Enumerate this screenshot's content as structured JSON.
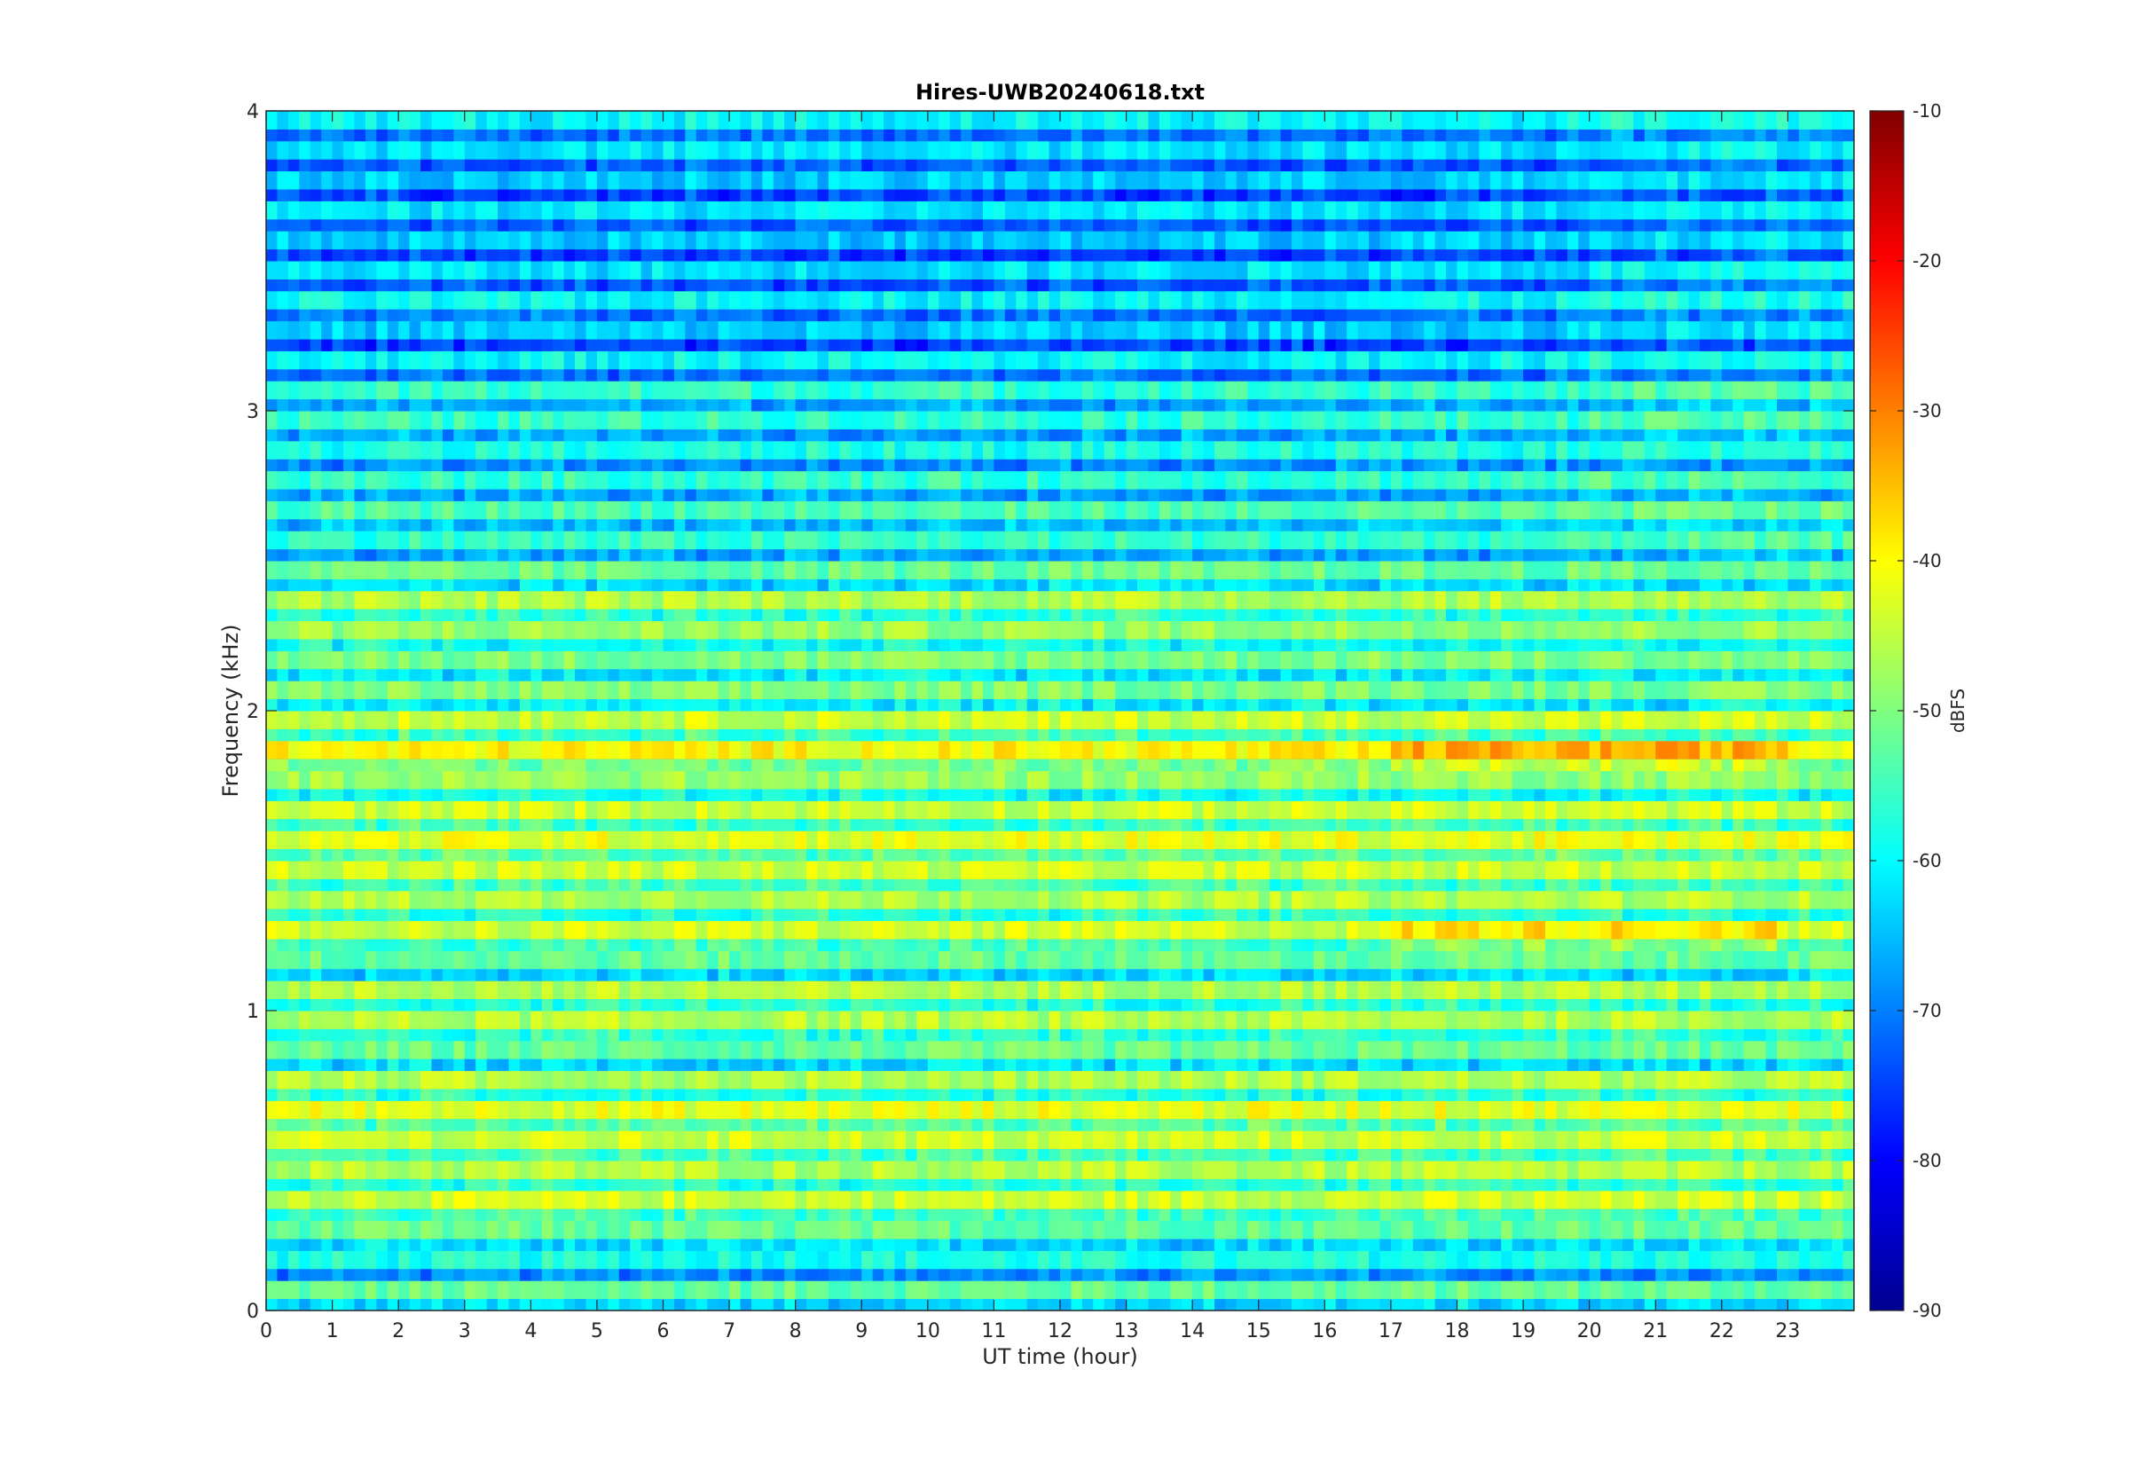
{
  "chart_data": {
    "type": "heatmap",
    "title": "Hires-UWB20240618.txt",
    "xlabel": "UT time (hour)",
    "ylabel": "Frequency (kHz)",
    "colorbar_label": "dBFS",
    "xlim": [
      0,
      24
    ],
    "ylim": [
      0,
      4
    ],
    "clim": [
      -90,
      -10
    ],
    "colormap": "jet",
    "x_ticks": [
      "0",
      "1",
      "2",
      "3",
      "4",
      "5",
      "6",
      "7",
      "8",
      "9",
      "10",
      "11",
      "12",
      "13",
      "14",
      "15",
      "16",
      "17",
      "18",
      "19",
      "20",
      "21",
      "22",
      "23"
    ],
    "y_ticks": [
      "0",
      "1",
      "2",
      "3",
      "4"
    ],
    "colorbar_ticks": [
      "-10",
      "-20",
      "-30",
      "-40",
      "-50",
      "-60",
      "-70",
      "-80",
      "-90"
    ],
    "frequency_bands_khz": [
      0.05,
      0.15,
      0.25,
      0.35,
      0.45,
      0.55,
      0.65,
      0.75,
      0.85,
      0.95,
      1.05,
      1.15,
      1.25,
      1.35,
      1.45,
      1.55,
      1.65,
      1.75,
      1.85,
      1.95,
      2.05,
      2.15,
      2.25,
      2.35,
      2.45,
      2.55,
      2.65,
      2.75,
      2.85,
      2.95,
      3.05,
      3.15,
      3.25,
      3.35,
      3.45,
      3.55,
      3.65,
      3.75,
      3.85,
      3.95
    ],
    "band_level_dbfs": [
      -52,
      -58,
      -52,
      -44,
      -46,
      -44,
      -42,
      -46,
      -52,
      -46,
      -46,
      -52,
      -44,
      -46,
      -44,
      -42,
      -44,
      -48,
      -40,
      -44,
      -50,
      -50,
      -48,
      -46,
      -52,
      -56,
      -54,
      -56,
      -58,
      -56,
      -56,
      -60,
      -64,
      -60,
      -62,
      -64,
      -62,
      -64,
      -62,
      -60
    ],
    "approximate_range_dbfs": [
      -75,
      -30
    ]
  }
}
